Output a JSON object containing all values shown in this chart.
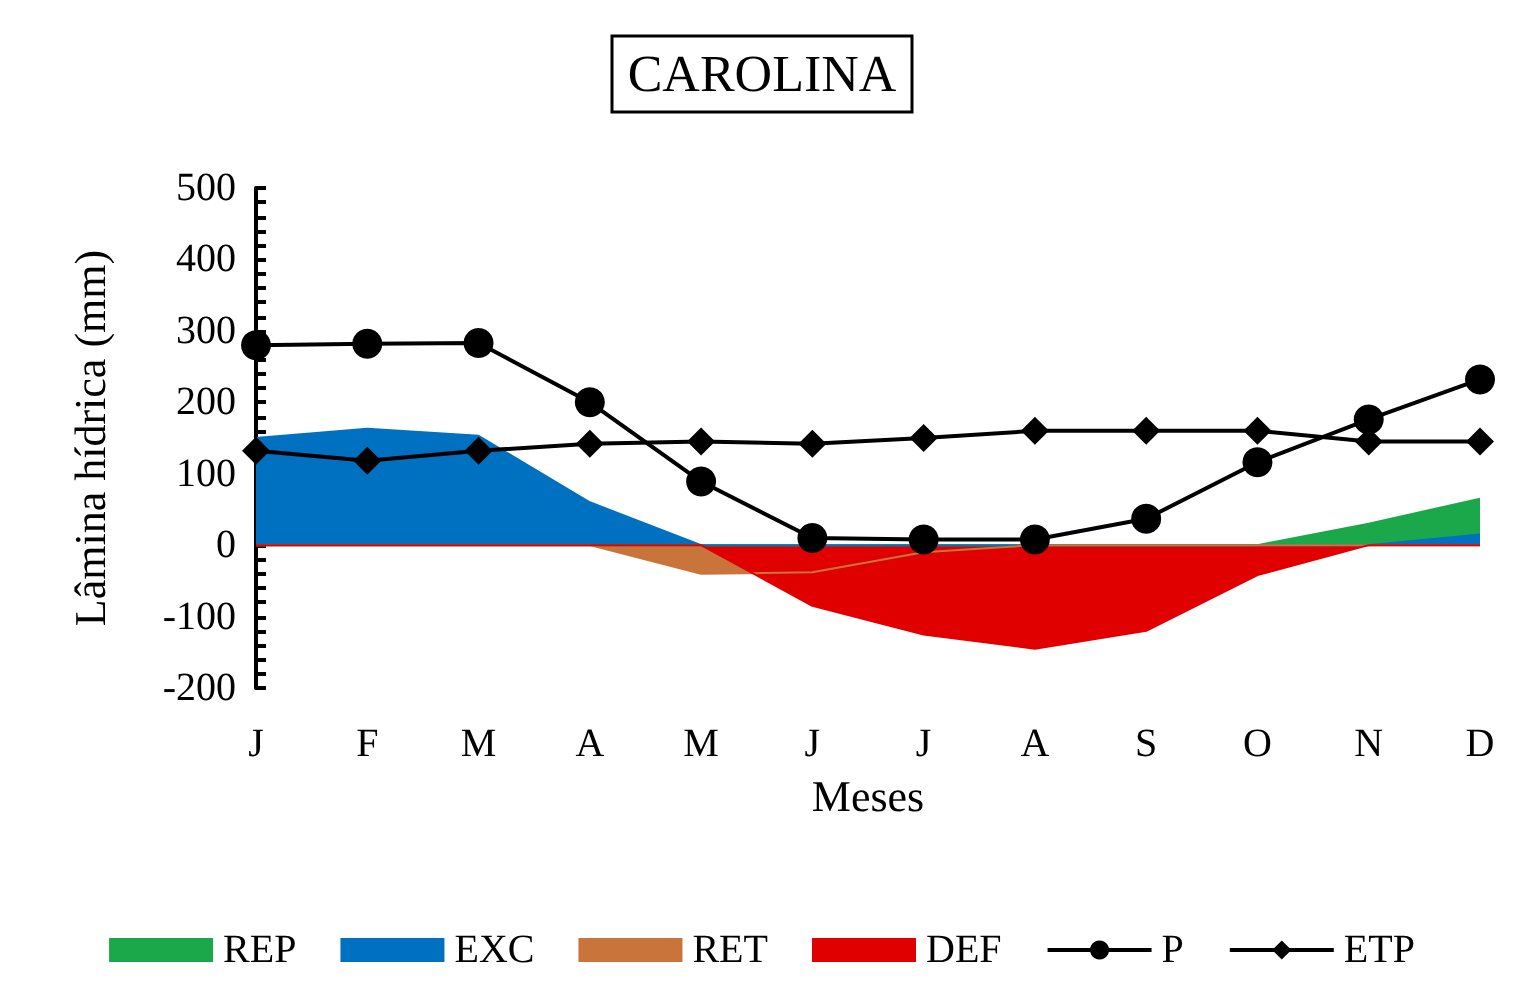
{
  "chart_data": {
    "type": "area",
    "title": "CAROLINA",
    "xlabel": "Meses",
    "ylabel": "Lâmina hídrica (mm)",
    "categories": [
      "J",
      "F",
      "M",
      "A",
      "M",
      "J",
      "J",
      "A",
      "S",
      "O",
      "N",
      "D"
    ],
    "ylim": [
      -200,
      500
    ],
    "yticks": [
      -200,
      -100,
      0,
      100,
      200,
      300,
      400,
      500
    ],
    "grid": false,
    "legend": "bottom",
    "series": [
      {
        "name": "REP",
        "color": "#1aa84a",
        "values": [
          0,
          0,
          0,
          0,
          0,
          0,
          0,
          0,
          0,
          0,
          30,
          65
        ]
      },
      {
        "name": "EXC",
        "color": "#0070c0",
        "values": [
          150,
          163,
          153,
          60,
          0,
          0,
          0,
          0,
          0,
          0,
          0,
          15
        ]
      },
      {
        "name": "RET",
        "color": "#c8743a",
        "values": [
          0,
          0,
          0,
          0,
          -40,
          -38,
          -10,
          0,
          0,
          0,
          0,
          0
        ]
      },
      {
        "name": "DEF",
        "color": "#e00000",
        "values": [
          0,
          0,
          0,
          0,
          0,
          -85,
          -125,
          -145,
          -120,
          -42,
          0,
          0
        ]
      },
      {
        "name": "P",
        "type": "line",
        "color": "#000000",
        "marker": "circle",
        "values": [
          280,
          282,
          283,
          200,
          89,
          10,
          8,
          8,
          37,
          116,
          176,
          232
        ]
      },
      {
        "name": "ETP",
        "type": "line",
        "color": "#000000",
        "marker": "diamond",
        "values": [
          132,
          118,
          132,
          142,
          145,
          142,
          150,
          160,
          160,
          160,
          145,
          145
        ]
      }
    ]
  }
}
